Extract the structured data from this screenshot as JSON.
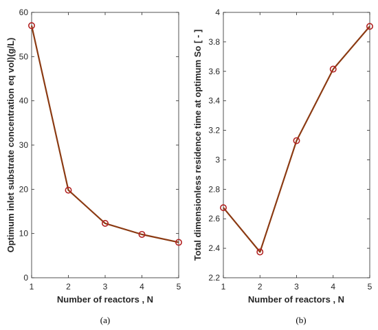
{
  "chart_data": [
    {
      "type": "line",
      "xlabel": "Number of reactors , N",
      "ylabel": "Optimum inlet substrate concentration eq vol)(g/L)",
      "caption": "(a)",
      "x": [
        1,
        2,
        3,
        4,
        5
      ],
      "xlim": [
        1,
        5
      ],
      "ylim": [
        0,
        60
      ],
      "xticks": [
        "1",
        "2",
        "3",
        "4",
        "5"
      ],
      "yticks": [
        "0",
        "10",
        "20",
        "30",
        "40",
        "50",
        "60"
      ],
      "grid": false,
      "line_color": "#8b3a12",
      "marker_color": "#b22222",
      "series": [
        {
          "values": [
            57,
            19.8,
            12.3,
            9.8,
            8.0
          ]
        }
      ]
    },
    {
      "type": "line",
      "xlabel": "Number of reactors , N",
      "ylabel": "Total dimensionless residence time at optimum So [ - ]",
      "caption": "(b)",
      "x": [
        1,
        2,
        3,
        4,
        5
      ],
      "xlim": [
        1,
        5
      ],
      "ylim": [
        2.2,
        4
      ],
      "xticks": [
        "1",
        "2",
        "3",
        "4",
        "5"
      ],
      "yticks": [
        "2.2",
        "2.4",
        "2.6",
        "2.8",
        "3",
        "3.2",
        "3.4",
        "3.6",
        "3.8",
        "4"
      ],
      "grid": false,
      "line_color": "#8b3a12",
      "marker_color": "#b22222",
      "series": [
        {
          "values": [
            2.675,
            2.375,
            3.13,
            3.615,
            3.905
          ]
        }
      ]
    }
  ]
}
